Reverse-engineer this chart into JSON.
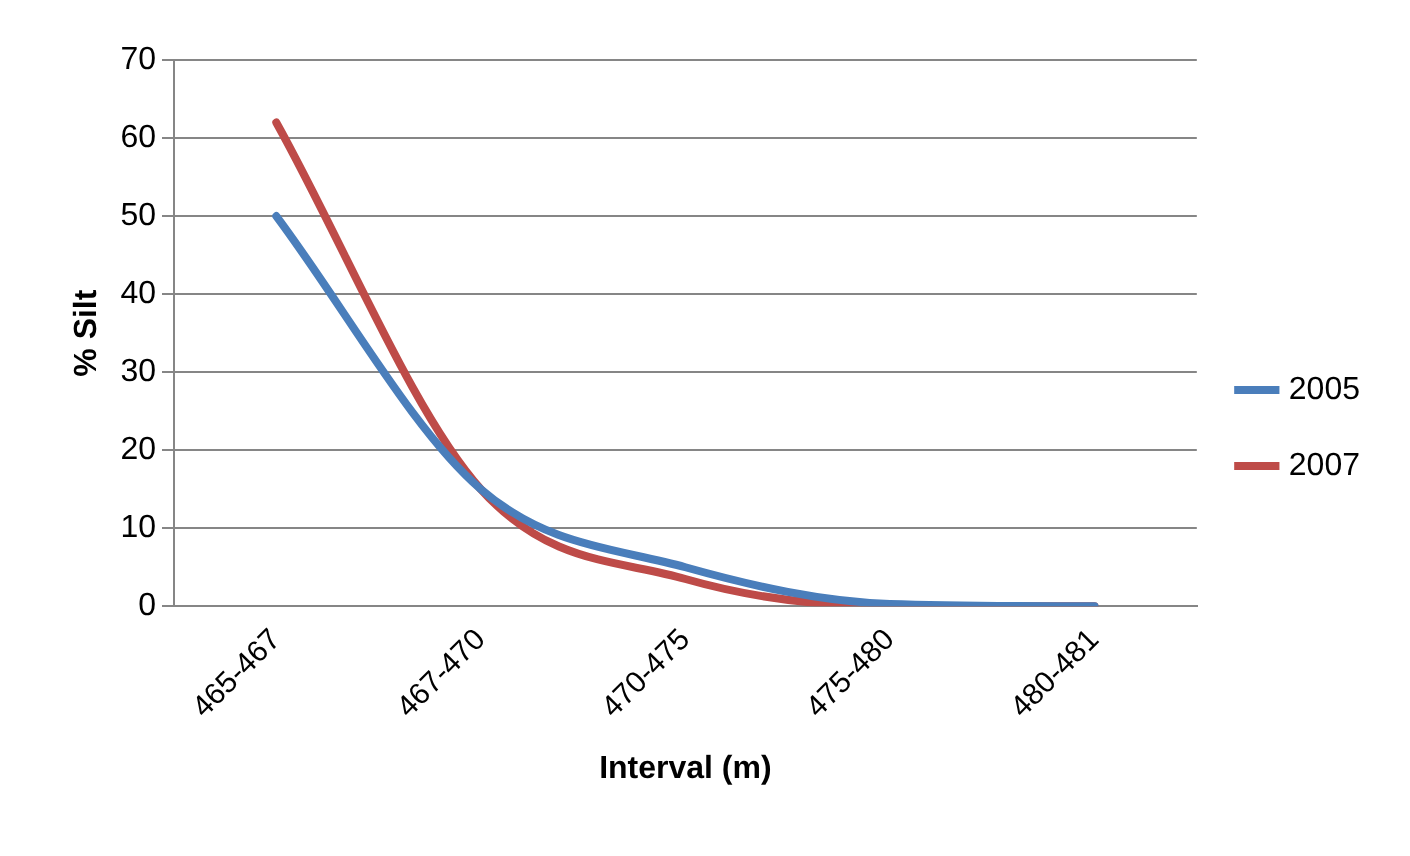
{
  "chart_data": {
    "type": "line",
    "xlabel": "Interval (m)",
    "ylabel": "% Silt",
    "categories": [
      "465-467",
      "467-470",
      "470-475",
      "475-480",
      "480-481"
    ],
    "series": [
      {
        "name": "2005",
        "color": "#4a7ebb",
        "values": [
          50,
          15,
          5,
          0.3,
          0
        ]
      },
      {
        "name": "2007",
        "color": "#be4b48",
        "values": [
          62,
          15,
          3.5,
          0,
          0
        ]
      }
    ],
    "ylim": [
      0,
      70
    ],
    "yticks": [
      0,
      10,
      20,
      30,
      40,
      50,
      60,
      70
    ],
    "grid": "y",
    "legend": "right",
    "marker": "none",
    "line_style": "solid"
  }
}
